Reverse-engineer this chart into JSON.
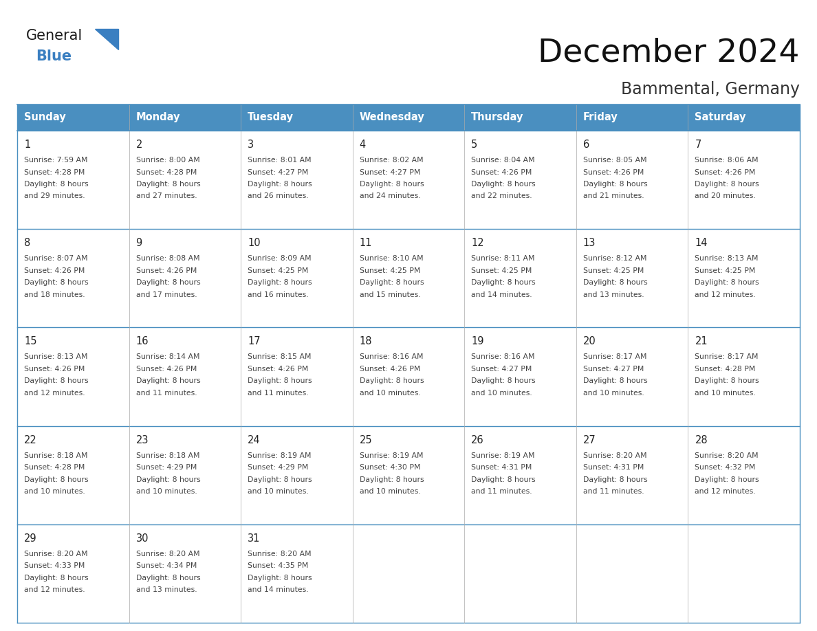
{
  "title": "December 2024",
  "subtitle": "Bammental, Germany",
  "header_color": "#4A8FC0",
  "header_text_color": "#FFFFFF",
  "cell_border_color": "#4A8FC0",
  "grid_line_color": "#aaaaaa",
  "day_names": [
    "Sunday",
    "Monday",
    "Tuesday",
    "Wednesday",
    "Thursday",
    "Friday",
    "Saturday"
  ],
  "day_number_color": "#222222",
  "cell_text_color": "#444444",
  "background_color": "#FFFFFF",
  "title_color": "#111111",
  "subtitle_color": "#333333",
  "logo_black_color": "#1a1a1a",
  "logo_blue_color": "#3a7fc1",
  "days": [
    {
      "date": 1,
      "col": 0,
      "row": 0,
      "sunrise": "7:59 AM",
      "sunset": "4:28 PM",
      "daylight_h": "8 hours",
      "daylight_m": "29 minutes."
    },
    {
      "date": 2,
      "col": 1,
      "row": 0,
      "sunrise": "8:00 AM",
      "sunset": "4:28 PM",
      "daylight_h": "8 hours",
      "daylight_m": "27 minutes."
    },
    {
      "date": 3,
      "col": 2,
      "row": 0,
      "sunrise": "8:01 AM",
      "sunset": "4:27 PM",
      "daylight_h": "8 hours",
      "daylight_m": "26 minutes."
    },
    {
      "date": 4,
      "col": 3,
      "row": 0,
      "sunrise": "8:02 AM",
      "sunset": "4:27 PM",
      "daylight_h": "8 hours",
      "daylight_m": "24 minutes."
    },
    {
      "date": 5,
      "col": 4,
      "row": 0,
      "sunrise": "8:04 AM",
      "sunset": "4:26 PM",
      "daylight_h": "8 hours",
      "daylight_m": "22 minutes."
    },
    {
      "date": 6,
      "col": 5,
      "row": 0,
      "sunrise": "8:05 AM",
      "sunset": "4:26 PM",
      "daylight_h": "8 hours",
      "daylight_m": "21 minutes."
    },
    {
      "date": 7,
      "col": 6,
      "row": 0,
      "sunrise": "8:06 AM",
      "sunset": "4:26 PM",
      "daylight_h": "8 hours",
      "daylight_m": "20 minutes."
    },
    {
      "date": 8,
      "col": 0,
      "row": 1,
      "sunrise": "8:07 AM",
      "sunset": "4:26 PM",
      "daylight_h": "8 hours",
      "daylight_m": "18 minutes."
    },
    {
      "date": 9,
      "col": 1,
      "row": 1,
      "sunrise": "8:08 AM",
      "sunset": "4:26 PM",
      "daylight_h": "8 hours",
      "daylight_m": "17 minutes."
    },
    {
      "date": 10,
      "col": 2,
      "row": 1,
      "sunrise": "8:09 AM",
      "sunset": "4:25 PM",
      "daylight_h": "8 hours",
      "daylight_m": "16 minutes."
    },
    {
      "date": 11,
      "col": 3,
      "row": 1,
      "sunrise": "8:10 AM",
      "sunset": "4:25 PM",
      "daylight_h": "8 hours",
      "daylight_m": "15 minutes."
    },
    {
      "date": 12,
      "col": 4,
      "row": 1,
      "sunrise": "8:11 AM",
      "sunset": "4:25 PM",
      "daylight_h": "8 hours",
      "daylight_m": "14 minutes."
    },
    {
      "date": 13,
      "col": 5,
      "row": 1,
      "sunrise": "8:12 AM",
      "sunset": "4:25 PM",
      "daylight_h": "8 hours",
      "daylight_m": "13 minutes."
    },
    {
      "date": 14,
      "col": 6,
      "row": 1,
      "sunrise": "8:13 AM",
      "sunset": "4:25 PM",
      "daylight_h": "8 hours",
      "daylight_m": "12 minutes."
    },
    {
      "date": 15,
      "col": 0,
      "row": 2,
      "sunrise": "8:13 AM",
      "sunset": "4:26 PM",
      "daylight_h": "8 hours",
      "daylight_m": "12 minutes."
    },
    {
      "date": 16,
      "col": 1,
      "row": 2,
      "sunrise": "8:14 AM",
      "sunset": "4:26 PM",
      "daylight_h": "8 hours",
      "daylight_m": "11 minutes."
    },
    {
      "date": 17,
      "col": 2,
      "row": 2,
      "sunrise": "8:15 AM",
      "sunset": "4:26 PM",
      "daylight_h": "8 hours",
      "daylight_m": "11 minutes."
    },
    {
      "date": 18,
      "col": 3,
      "row": 2,
      "sunrise": "8:16 AM",
      "sunset": "4:26 PM",
      "daylight_h": "8 hours",
      "daylight_m": "10 minutes."
    },
    {
      "date": 19,
      "col": 4,
      "row": 2,
      "sunrise": "8:16 AM",
      "sunset": "4:27 PM",
      "daylight_h": "8 hours",
      "daylight_m": "10 minutes."
    },
    {
      "date": 20,
      "col": 5,
      "row": 2,
      "sunrise": "8:17 AM",
      "sunset": "4:27 PM",
      "daylight_h": "8 hours",
      "daylight_m": "10 minutes."
    },
    {
      "date": 21,
      "col": 6,
      "row": 2,
      "sunrise": "8:17 AM",
      "sunset": "4:28 PM",
      "daylight_h": "8 hours",
      "daylight_m": "10 minutes."
    },
    {
      "date": 22,
      "col": 0,
      "row": 3,
      "sunrise": "8:18 AM",
      "sunset": "4:28 PM",
      "daylight_h": "8 hours",
      "daylight_m": "10 minutes."
    },
    {
      "date": 23,
      "col": 1,
      "row": 3,
      "sunrise": "8:18 AM",
      "sunset": "4:29 PM",
      "daylight_h": "8 hours",
      "daylight_m": "10 minutes."
    },
    {
      "date": 24,
      "col": 2,
      "row": 3,
      "sunrise": "8:19 AM",
      "sunset": "4:29 PM",
      "daylight_h": "8 hours",
      "daylight_m": "10 minutes."
    },
    {
      "date": 25,
      "col": 3,
      "row": 3,
      "sunrise": "8:19 AM",
      "sunset": "4:30 PM",
      "daylight_h": "8 hours",
      "daylight_m": "10 minutes."
    },
    {
      "date": 26,
      "col": 4,
      "row": 3,
      "sunrise": "8:19 AM",
      "sunset": "4:31 PM",
      "daylight_h": "8 hours",
      "daylight_m": "11 minutes."
    },
    {
      "date": 27,
      "col": 5,
      "row": 3,
      "sunrise": "8:20 AM",
      "sunset": "4:31 PM",
      "daylight_h": "8 hours",
      "daylight_m": "11 minutes."
    },
    {
      "date": 28,
      "col": 6,
      "row": 3,
      "sunrise": "8:20 AM",
      "sunset": "4:32 PM",
      "daylight_h": "8 hours",
      "daylight_m": "12 minutes."
    },
    {
      "date": 29,
      "col": 0,
      "row": 4,
      "sunrise": "8:20 AM",
      "sunset": "4:33 PM",
      "daylight_h": "8 hours",
      "daylight_m": "12 minutes."
    },
    {
      "date": 30,
      "col": 1,
      "row": 4,
      "sunrise": "8:20 AM",
      "sunset": "4:34 PM",
      "daylight_h": "8 hours",
      "daylight_m": "13 minutes."
    },
    {
      "date": 31,
      "col": 2,
      "row": 4,
      "sunrise": "8:20 AM",
      "sunset": "4:35 PM",
      "daylight_h": "8 hours",
      "daylight_m": "14 minutes."
    }
  ]
}
